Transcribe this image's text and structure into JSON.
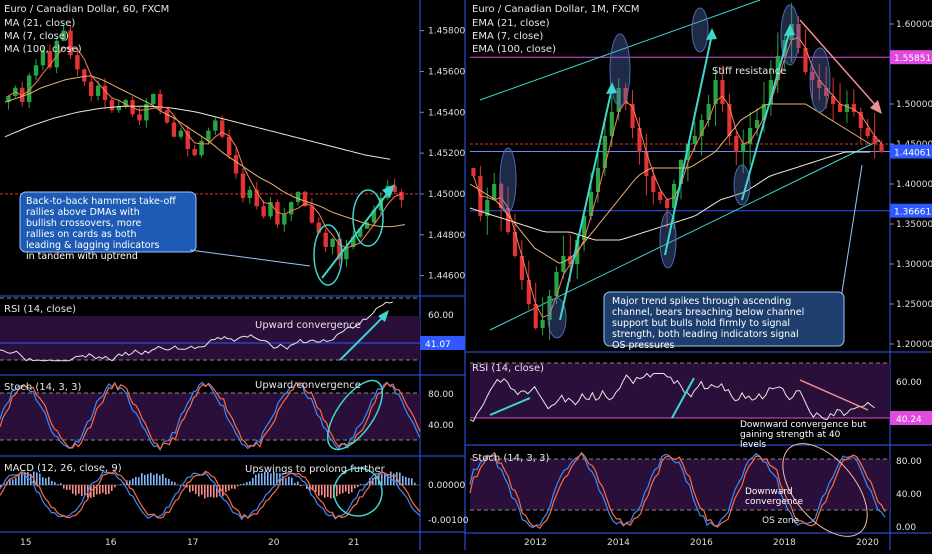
{
  "left": {
    "title": "Euro / Canadian Dollar, 60, FXCM",
    "ma_labels": [
      "MA (21, close)",
      "MA (7, close)",
      "MA (100, close)"
    ],
    "price_ticks": [
      "1.45800",
      "1.45600",
      "1.45400",
      "1.45200",
      "1.45000",
      "1.44800",
      "1.44600"
    ],
    "price_tag": "",
    "x_ticks": [
      "15",
      "16",
      "17",
      "20",
      "21"
    ],
    "annotation": "Back-to-back hammers take-off rallies above DMAs with bullish crossovers, more rallies on cards as both leading & lagging indicators in tandem with uptrend",
    "rsi": {
      "label": "RSI (14, close)",
      "ticks": [
        "60.00"
      ],
      "value_tag": "41.07",
      "note": "Upward convergence"
    },
    "stoch": {
      "label": "Stoch (14, 3, 3)",
      "ticks": [
        "80.00",
        "40.00"
      ],
      "note": "Upward convergence"
    },
    "macd": {
      "label": "MACD (12, 26, close, 9)",
      "ticks": [
        "0.00000",
        "-0.00100"
      ],
      "note": "Upswings to prolong further"
    }
  },
  "right": {
    "title": "Euro / Canadian Dollar, 1M, FXCM",
    "ema_labels": [
      "EMA (21, close)",
      "EMA (7, close)",
      "EMA (100, close)"
    ],
    "price_ticks": [
      "1.60000",
      "1.50000",
      "1.45000",
      "1.40000",
      "1.35000",
      "1.30000",
      "1.25000",
      "1.20000"
    ],
    "resistance_tag": "1.55851",
    "current_tag": "1.44061",
    "support_tag": "1.36661",
    "resistance_note": "Stiff resistance",
    "x_ticks": [
      "2012",
      "2014",
      "2016",
      "2018",
      "2020"
    ],
    "annotation": "Major trend spikes through ascending channel, bears breaching below channel support but bulls hold firmly to signal strength, both leading indicators signal OS pressures",
    "rsi": {
      "label": "RSI (14, close)",
      "ticks": [
        "60.00"
      ],
      "value_tag": "40.24",
      "note": "Downward convergence but gaining strength at 40 levels"
    },
    "stoch": {
      "label": "Stoch (14, 3, 3)",
      "ticks": [
        "80.00",
        "40.00",
        "0.00"
      ],
      "note": "Downward convergence",
      "os_note": "OS zone"
    }
  },
  "colors": {
    "up": "#26a641",
    "down": "#e23434",
    "ma21": "#e8b070",
    "ma7": "#ff7c5c",
    "ma100": "#f2ead2",
    "cyan": "#3fd6d0",
    "magenta": "#e04ae0",
    "blue": "#2f58ff",
    "panel": "#2a0f3a",
    "k": "#3a8bff",
    "d": "#ff6a3c"
  },
  "chart_data": [
    {
      "type": "candlestick",
      "title": "Euro / Canadian Dollar, 60, FXCM",
      "ylim": [
        1.445,
        1.4595
      ],
      "x_ticks": [
        "15",
        "16",
        "17",
        "20",
        "21"
      ],
      "closes": [
        1.4548,
        1.4552,
        1.4545,
        1.4558,
        1.4563,
        1.457,
        1.4562,
        1.4575,
        1.458,
        1.4568,
        1.4561,
        1.4555,
        1.4548,
        1.4553,
        1.4546,
        1.4541,
        1.4543,
        1.4546,
        1.4539,
        1.4536,
        1.4544,
        1.4549,
        1.4541,
        1.4535,
        1.4528,
        1.4531,
        1.4522,
        1.4519,
        1.4526,
        1.4531,
        1.4536,
        1.4528,
        1.4519,
        1.451,
        1.4498,
        1.4502,
        1.4494,
        1.4489,
        1.4496,
        1.4485,
        1.449,
        1.4496,
        1.4501,
        1.4494,
        1.4486,
        1.4481,
        1.4474,
        1.4478,
        1.4468,
        1.4474,
        1.4479,
        1.4483,
        1.4486,
        1.4492,
        1.4498,
        1.4504,
        1.4501,
        1.4497
      ],
      "ma21": [
        1.4545,
        1.4547,
        1.4549,
        1.4552,
        1.4554,
        1.4556,
        1.4557,
        1.4558,
        1.4556,
        1.4553,
        1.455,
        1.4547,
        1.4544,
        1.454,
        1.4537,
        1.4533,
        1.4529,
        1.4525,
        1.452,
        1.4516,
        1.4512,
        1.4508,
        1.4505,
        1.4501,
        1.4498,
        1.4496,
        1.4494,
        1.4491,
        1.4489,
        1.4487,
        1.4485,
        1.4484,
        1.4484,
        1.4485
      ],
      "ma100": [
        1.4528,
        1.4533,
        1.4537,
        1.454,
        1.4542,
        1.4543,
        1.4543,
        1.4542,
        1.454,
        1.4537,
        1.4534,
        1.4531,
        1.4528,
        1.4525,
        1.4522,
        1.4519,
        1.4517
      ]
    },
    {
      "type": "candlestick",
      "title": "Euro / Canadian Dollar, 1M, FXCM",
      "ylim": [
        1.19,
        1.63
      ],
      "x_ticks": [
        "2012",
        "2014",
        "2016",
        "2018",
        "2020"
      ],
      "levels": {
        "resistance": 1.55851,
        "current": 1.44061,
        "support": 1.36661
      },
      "closes": [
        1.41,
        1.36,
        1.38,
        1.4,
        1.37,
        1.34,
        1.31,
        1.28,
        1.25,
        1.22,
        1.23,
        1.26,
        1.29,
        1.31,
        1.3,
        1.33,
        1.36,
        1.39,
        1.42,
        1.46,
        1.49,
        1.52,
        1.5,
        1.47,
        1.44,
        1.41,
        1.39,
        1.38,
        1.37,
        1.4,
        1.43,
        1.45,
        1.46,
        1.48,
        1.5,
        1.53,
        1.5,
        1.46,
        1.44,
        1.45,
        1.47,
        1.48,
        1.5,
        1.53,
        1.56,
        1.58,
        1.6,
        1.57,
        1.54,
        1.53,
        1.52,
        1.51,
        1.5,
        1.49,
        1.5,
        1.49,
        1.47,
        1.46,
        1.45,
        1.44
      ],
      "ema21": [
        1.4,
        1.39,
        1.38,
        1.36,
        1.34,
        1.32,
        1.31,
        1.3,
        1.31,
        1.33,
        1.35,
        1.37,
        1.39,
        1.41,
        1.42,
        1.42,
        1.42,
        1.42,
        1.43,
        1.44,
        1.46,
        1.48,
        1.49,
        1.5,
        1.5,
        1.5,
        1.5,
        1.49,
        1.48,
        1.47,
        1.46,
        1.45
      ],
      "ema100": [
        1.37,
        1.36,
        1.35,
        1.34,
        1.34,
        1.33,
        1.33,
        1.34,
        1.35,
        1.36,
        1.38,
        1.39,
        1.41,
        1.42,
        1.43,
        1.44,
        1.44
      ]
    }
  ]
}
